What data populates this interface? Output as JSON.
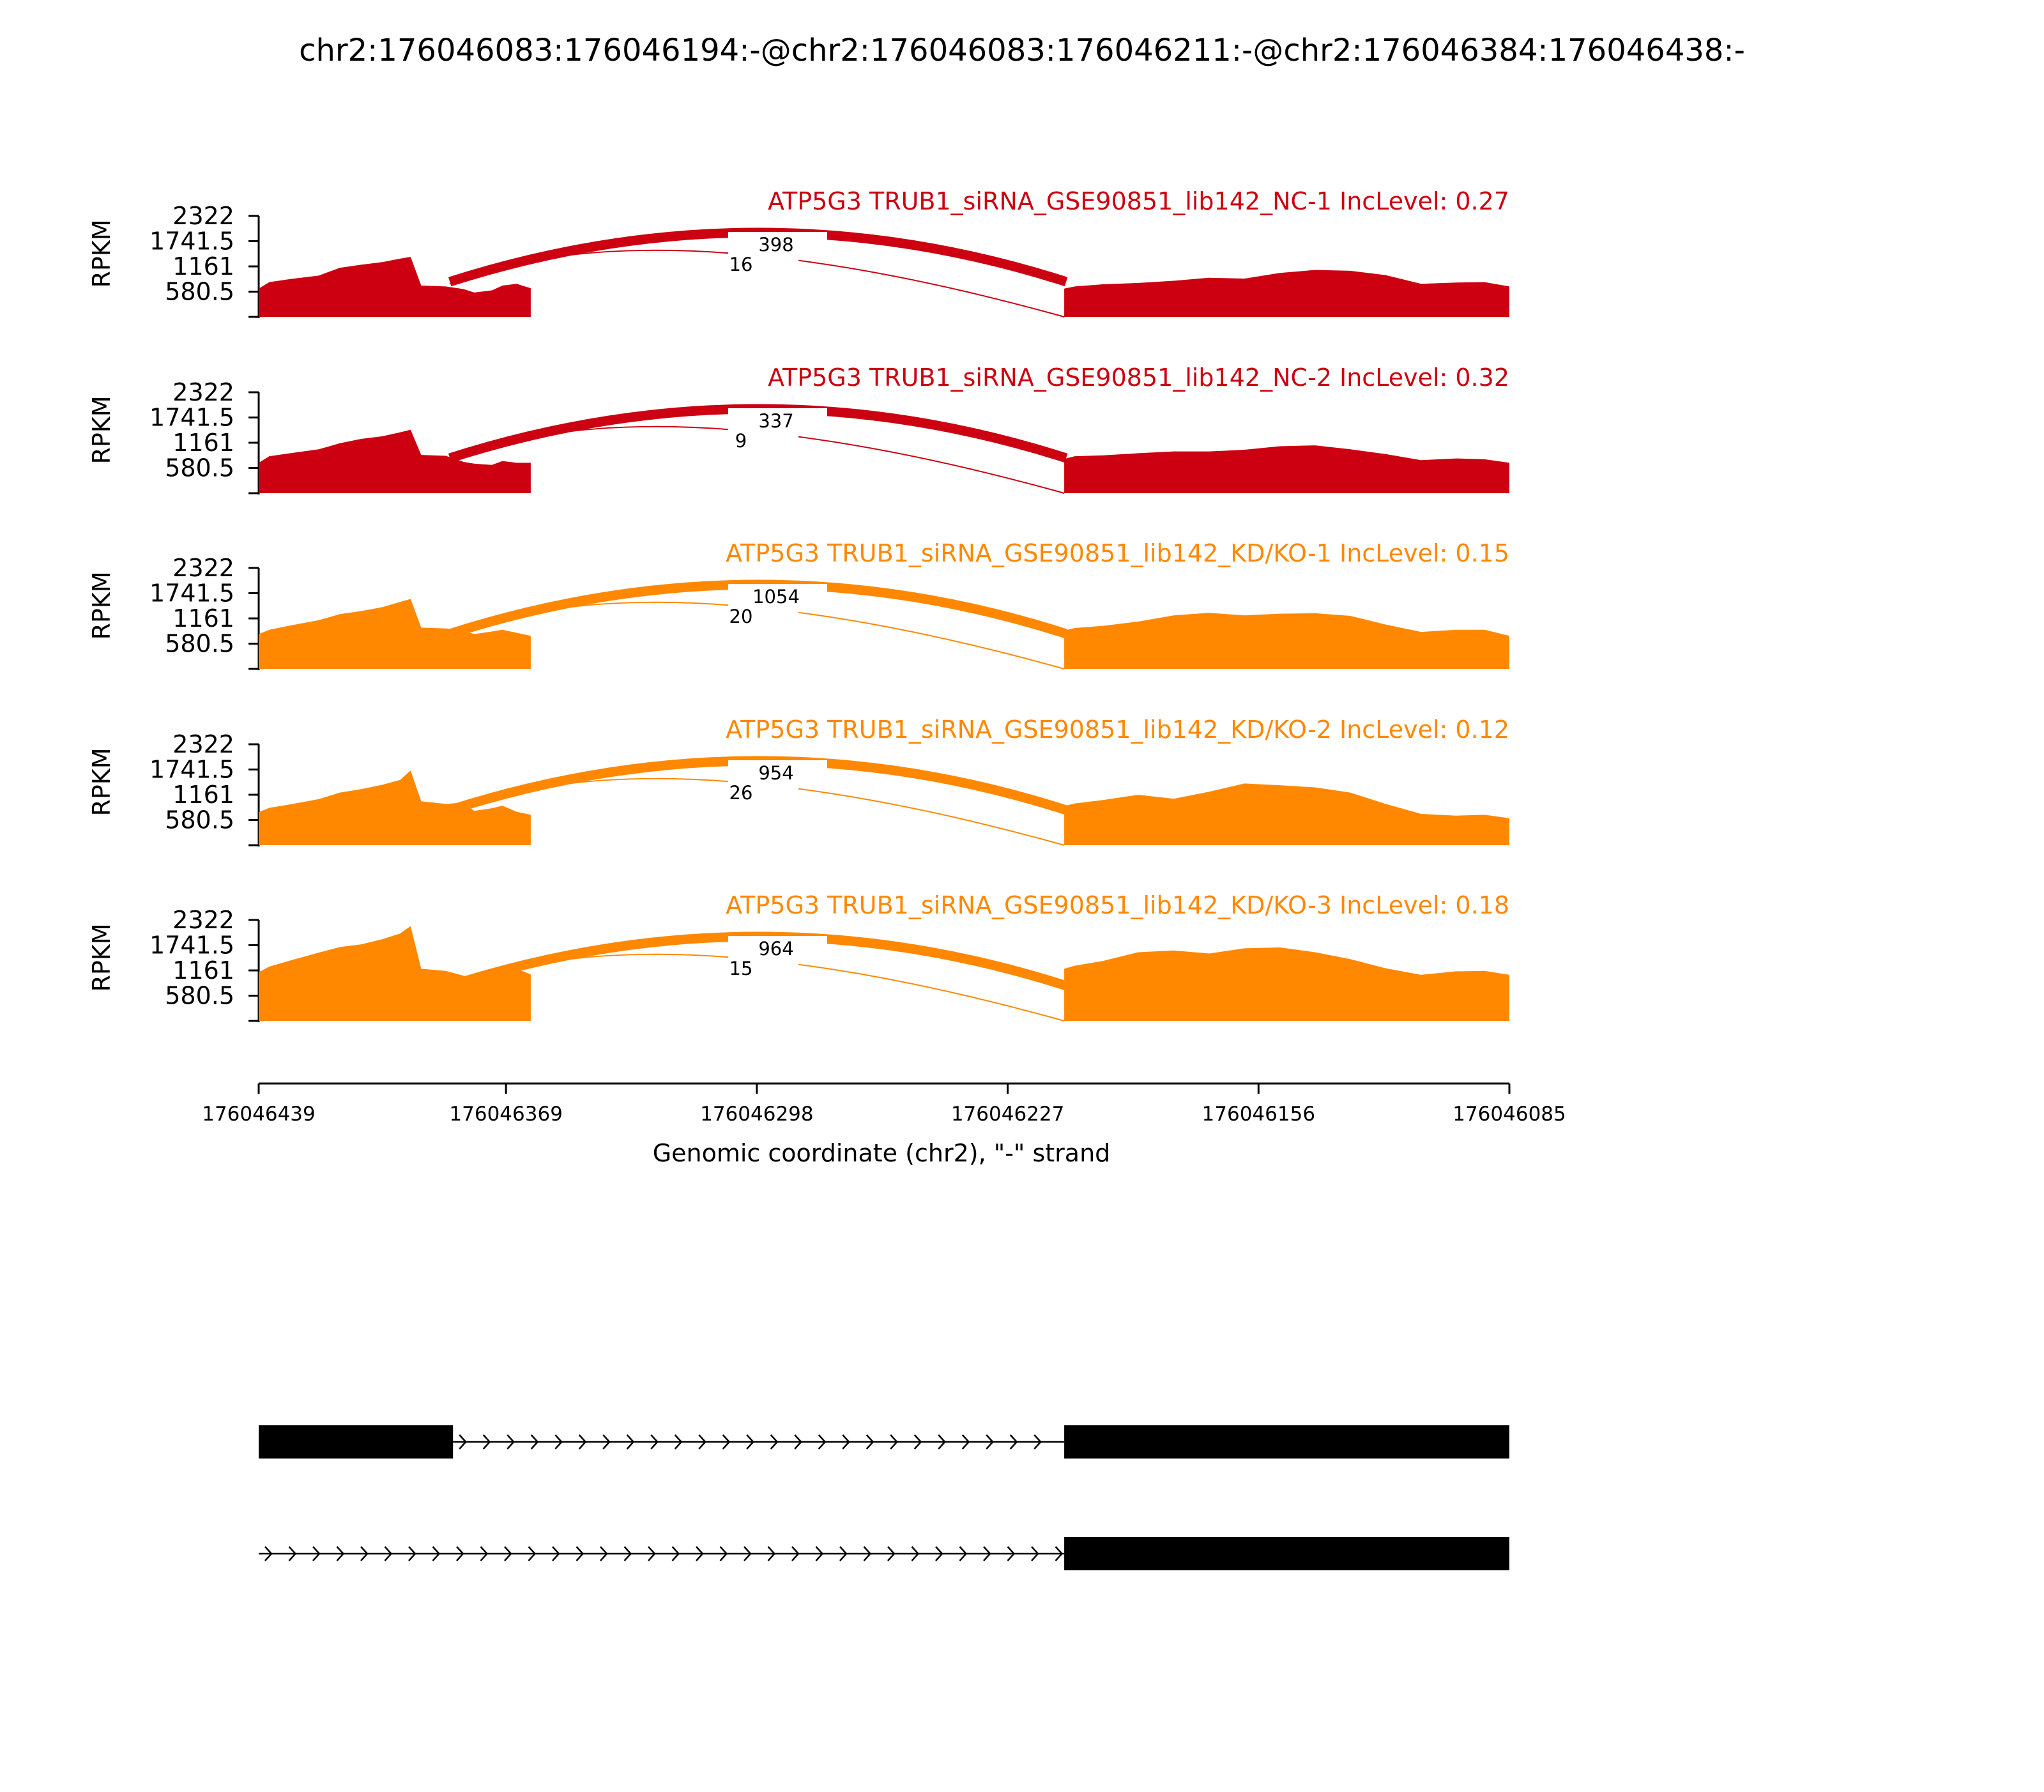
{
  "title": "chr2:176046083:176046194:-@chr2:176046083:176046211:-@chr2:176046384:176046438:-",
  "chart_data": {
    "type": "area",
    "title": "chr2:176046083:176046194:-@chr2:176046083:176046211:-@chr2:176046384:176046438:-",
    "ylabel": "RPKM",
    "xlabel": "Genomic coordinate (chr2), \"-\" strand",
    "ylim": [
      0,
      2322
    ],
    "xlim": [
      176046439,
      176046085
    ],
    "yticks": [
      "2322",
      "1741.5",
      "1161",
      "580.5"
    ],
    "xticks": [
      "176046439",
      "176046369",
      "176046298",
      "176046227",
      "176046156",
      "176046085"
    ],
    "xtick_values": [
      176046439,
      176046369,
      176046298,
      176046227,
      176046156,
      176046085
    ],
    "colors": {
      "NC": "#cc0011",
      "KD": "#ff8800",
      "structure": "#000000"
    },
    "exons": {
      "upstream": [
        176046439,
        176046384
      ],
      "skipped_end": 176046211,
      "downstream": [
        176046211,
        176046085
      ]
    },
    "series": [
      {
        "name": "ATP5G3 TRUB1_siRNA_GSE90851_lib142_NC-1 IncLevel: 0.27",
        "group": "NC",
        "junctions": {
          "skip": "398",
          "inclusion": "16"
        },
        "profile": [
          [
            176046439,
            650
          ],
          [
            176046436,
            800
          ],
          [
            176046430,
            870
          ],
          [
            176046422,
            950
          ],
          [
            176046416,
            1130
          ],
          [
            176046410,
            1200
          ],
          [
            176046404,
            1260
          ],
          [
            176046399,
            1340
          ],
          [
            176046396,
            1380
          ],
          [
            176046393,
            720
          ],
          [
            176046386,
            700
          ],
          [
            176046381,
            640
          ],
          [
            176046378,
            560
          ],
          [
            176046373,
            610
          ],
          [
            176046370,
            720
          ],
          [
            176046366,
            760
          ],
          [
            176046362,
            660
          ],
          [
            176046211,
            650
          ],
          [
            176046208,
            700
          ],
          [
            176046200,
            750
          ],
          [
            176046190,
            780
          ],
          [
            176046180,
            830
          ],
          [
            176046170,
            900
          ],
          [
            176046160,
            880
          ],
          [
            176046150,
            1010
          ],
          [
            176046140,
            1080
          ],
          [
            176046130,
            1060
          ],
          [
            176046120,
            960
          ],
          [
            176046110,
            760
          ],
          [
            176046100,
            790
          ],
          [
            176046092,
            800
          ],
          [
            176046085,
            700
          ]
        ]
      },
      {
        "name": "ATP5G3 TRUB1_siRNA_GSE90851_lib142_NC-2 IncLevel: 0.32",
        "group": "NC",
        "junctions": {
          "skip": "337",
          "inclusion": "9"
        },
        "profile": [
          [
            176046439,
            700
          ],
          [
            176046436,
            850
          ],
          [
            176046430,
            920
          ],
          [
            176046422,
            1010
          ],
          [
            176046416,
            1150
          ],
          [
            176046410,
            1250
          ],
          [
            176046404,
            1310
          ],
          [
            176046399,
            1400
          ],
          [
            176046396,
            1460
          ],
          [
            176046393,
            880
          ],
          [
            176046386,
            860
          ],
          [
            176046381,
            720
          ],
          [
            176046378,
            680
          ],
          [
            176046373,
            650
          ],
          [
            176046370,
            740
          ],
          [
            176046366,
            700
          ],
          [
            176046362,
            700
          ],
          [
            176046211,
            790
          ],
          [
            176046208,
            850
          ],
          [
            176046200,
            870
          ],
          [
            176046190,
            920
          ],
          [
            176046180,
            960
          ],
          [
            176046170,
            960
          ],
          [
            176046160,
            1000
          ],
          [
            176046150,
            1080
          ],
          [
            176046140,
            1100
          ],
          [
            176046130,
            1010
          ],
          [
            176046120,
            900
          ],
          [
            176046110,
            760
          ],
          [
            176046100,
            800
          ],
          [
            176046092,
            780
          ],
          [
            176046085,
            700
          ]
        ]
      },
      {
        "name": "ATP5G3 TRUB1_siRNA_GSE90851_lib142_KD/KO-1 IncLevel: 0.15",
        "group": "KD",
        "junctions": {
          "skip": "1054",
          "inclusion": "20"
        },
        "profile": [
          [
            176046439,
            800
          ],
          [
            176046436,
            900
          ],
          [
            176046430,
            1000
          ],
          [
            176046422,
            1120
          ],
          [
            176046416,
            1260
          ],
          [
            176046410,
            1330
          ],
          [
            176046404,
            1420
          ],
          [
            176046399,
            1540
          ],
          [
            176046396,
            1610
          ],
          [
            176046393,
            950
          ],
          [
            176046386,
            930
          ],
          [
            176046381,
            890
          ],
          [
            176046378,
            800
          ],
          [
            176046373,
            860
          ],
          [
            176046370,
            900
          ],
          [
            176046366,
            830
          ],
          [
            176046362,
            760
          ],
          [
            176046211,
            880
          ],
          [
            176046208,
            940
          ],
          [
            176046200,
            990
          ],
          [
            176046190,
            1090
          ],
          [
            176046180,
            1230
          ],
          [
            176046170,
            1290
          ],
          [
            176046160,
            1230
          ],
          [
            176046150,
            1270
          ],
          [
            176046140,
            1280
          ],
          [
            176046130,
            1220
          ],
          [
            176046120,
            1020
          ],
          [
            176046110,
            850
          ],
          [
            176046100,
            900
          ],
          [
            176046092,
            900
          ],
          [
            176046085,
            760
          ]
        ]
      },
      {
        "name": "ATP5G3 TRUB1_siRNA_GSE90851_lib142_KD/KO-2 IncLevel: 0.12",
        "group": "KD",
        "junctions": {
          "skip": "954",
          "inclusion": "26"
        },
        "profile": [
          [
            176046439,
            760
          ],
          [
            176046436,
            860
          ],
          [
            176046430,
            940
          ],
          [
            176046422,
            1060
          ],
          [
            176046416,
            1210
          ],
          [
            176046410,
            1290
          ],
          [
            176046404,
            1390
          ],
          [
            176046399,
            1500
          ],
          [
            176046396,
            1720
          ],
          [
            176046393,
            1010
          ],
          [
            176046386,
            950
          ],
          [
            176046381,
            980
          ],
          [
            176046378,
            790
          ],
          [
            176046373,
            850
          ],
          [
            176046370,
            910
          ],
          [
            176046366,
            770
          ],
          [
            176046362,
            700
          ],
          [
            176046211,
            900
          ],
          [
            176046208,
            960
          ],
          [
            176046200,
            1040
          ],
          [
            176046190,
            1160
          ],
          [
            176046180,
            1070
          ],
          [
            176046170,
            1230
          ],
          [
            176046160,
            1420
          ],
          [
            176046150,
            1380
          ],
          [
            176046140,
            1330
          ],
          [
            176046130,
            1210
          ],
          [
            176046120,
            950
          ],
          [
            176046110,
            720
          ],
          [
            176046100,
            680
          ],
          [
            176046092,
            700
          ],
          [
            176046085,
            620
          ]
        ]
      },
      {
        "name": "ATP5G3 TRUB1_siRNA_GSE90851_lib142_KD/KO-3 IncLevel: 0.18",
        "group": "KD",
        "junctions": {
          "skip": "964",
          "inclusion": "15"
        },
        "profile": [
          [
            176046439,
            1120
          ],
          [
            176046436,
            1250
          ],
          [
            176046430,
            1390
          ],
          [
            176046422,
            1570
          ],
          [
            176046416,
            1700
          ],
          [
            176046410,
            1760
          ],
          [
            176046404,
            1880
          ],
          [
            176046399,
            2010
          ],
          [
            176046396,
            2180
          ],
          [
            176046393,
            1200
          ],
          [
            176046386,
            1150
          ],
          [
            176046381,
            1040
          ],
          [
            176046378,
            960
          ],
          [
            176046373,
            1150
          ],
          [
            176046370,
            1180
          ],
          [
            176046366,
            1200
          ],
          [
            176046362,
            1070
          ],
          [
            176046211,
            1200
          ],
          [
            176046208,
            1270
          ],
          [
            176046200,
            1380
          ],
          [
            176046190,
            1580
          ],
          [
            176046180,
            1620
          ],
          [
            176046170,
            1550
          ],
          [
            176046160,
            1670
          ],
          [
            176046150,
            1690
          ],
          [
            176046140,
            1580
          ],
          [
            176046130,
            1420
          ],
          [
            176046120,
            1210
          ],
          [
            176046110,
            1060
          ],
          [
            176046100,
            1140
          ],
          [
            176046092,
            1150
          ],
          [
            176046085,
            1060
          ]
        ]
      }
    ]
  }
}
